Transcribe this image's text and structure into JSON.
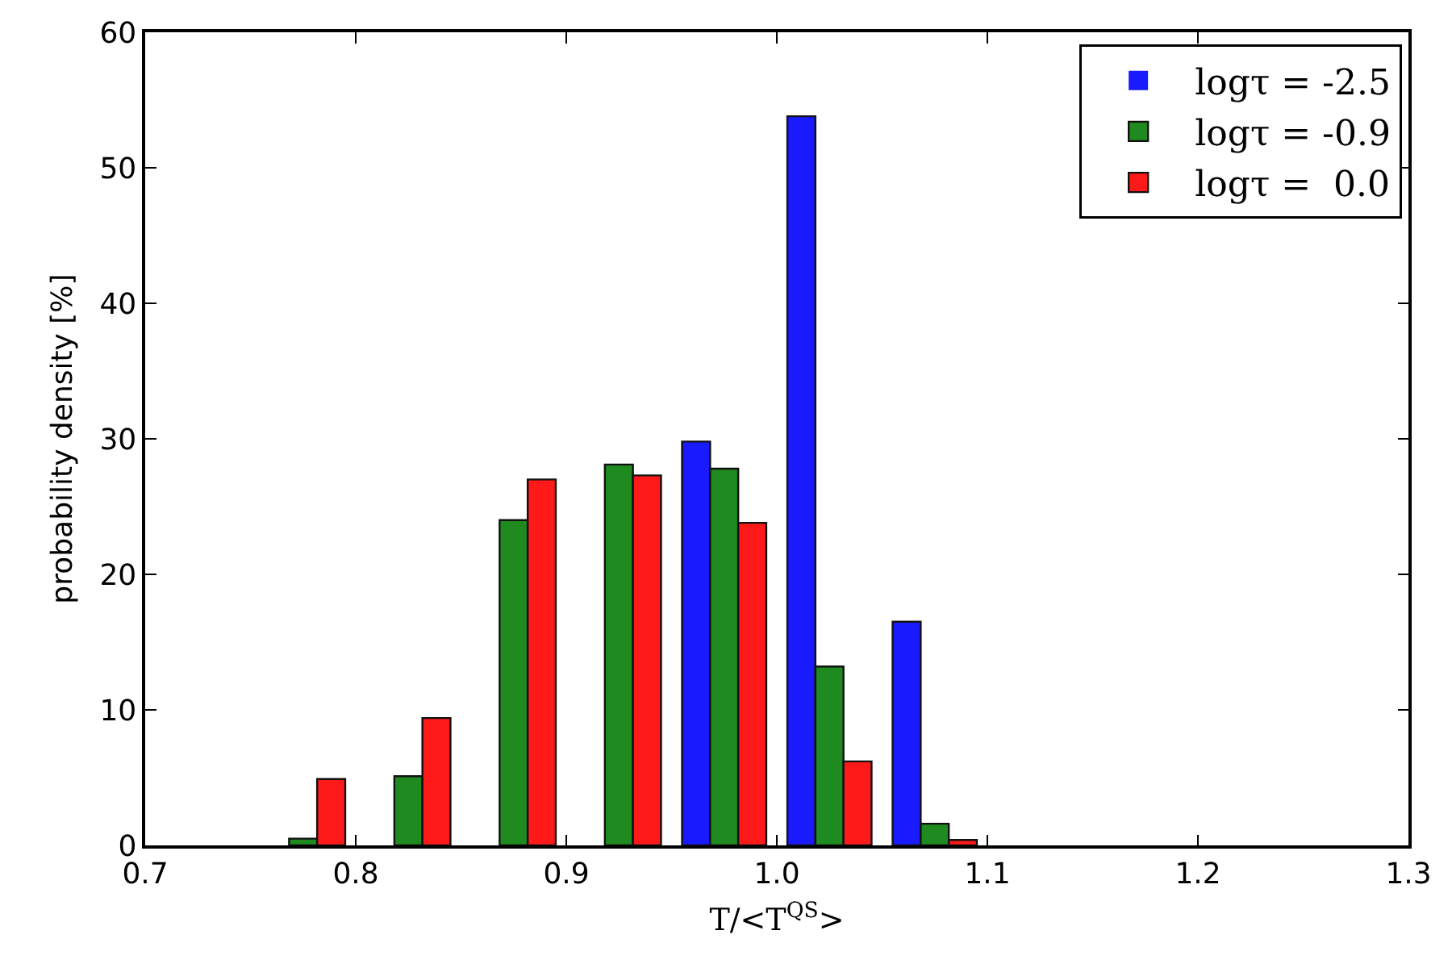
{
  "chart_data": {
    "type": "histogram",
    "xlabel": "T/<T$^{QS}$>",
    "ylabel": "probability density [%]",
    "bins": [
      0.75,
      0.8,
      0.85,
      0.9,
      0.95,
      1.0,
      1.05,
      1.1,
      1.15
    ],
    "series": [
      {
        "name": "logτ = -2.5",
        "color": "#1a1aff",
        "values": [
          0,
          0,
          0,
          null,
          29.8,
          53.8,
          16.5,
          null
        ]
      },
      {
        "name": "logτ = -0.9",
        "color": "#1f8a1f",
        "values": [
          0.5,
          5.1,
          24.0,
          28.1,
          27.8,
          13.2,
          1.6,
          0
        ]
      },
      {
        "name": "logτ =  0.0",
        "color": "#ff1a1a",
        "values": [
          4.9,
          9.4,
          27.0,
          27.3,
          23.8,
          6.2,
          0.4,
          0
        ]
      }
    ],
    "xlim": [
      0.7,
      1.3
    ],
    "xticks": [
      0.7,
      0.8,
      0.9,
      {
        "value": 1,
        "label": "1.0"
      },
      1.1,
      1.2,
      1.3
    ],
    "ylim": [
      0,
      60
    ],
    "yticks": [
      0,
      10,
      20,
      30,
      40,
      50,
      60
    ],
    "grid": false,
    "legend": "top right"
  }
}
